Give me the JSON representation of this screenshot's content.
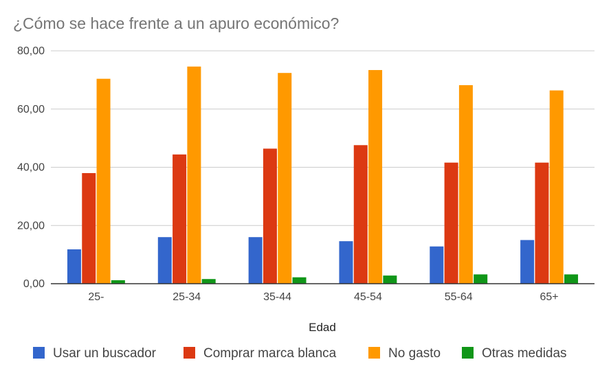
{
  "chart_data": {
    "type": "bar",
    "title": "¿Cómo se hace frente a un apuro económico?",
    "xlabel": "Edad",
    "ylabel": "",
    "ylim": [
      0,
      80
    ],
    "yticks": [
      "0,00",
      "20,00",
      "40,00",
      "60,00",
      "80,00"
    ],
    "grid": true,
    "legend_position": "bottom",
    "categories": [
      "25-",
      "25-34",
      "35-44",
      "45-54",
      "55-64",
      "65+"
    ],
    "series": [
      {
        "name": "Usar un buscador",
        "color": "#3366cc",
        "values": [
          11.8,
          16.0,
          16.0,
          14.6,
          12.8,
          15.0
        ]
      },
      {
        "name": "Comprar marca blanca",
        "color": "#dc3912",
        "values": [
          38.0,
          44.4,
          46.4,
          47.6,
          41.6,
          41.6
        ]
      },
      {
        "name": "No gasto",
        "color": "#ff9900",
        "values": [
          70.4,
          74.6,
          72.4,
          73.4,
          68.2,
          66.4
        ]
      },
      {
        "name": "Otras medidas",
        "color": "#109618",
        "values": [
          1.2,
          1.6,
          2.2,
          2.8,
          3.2,
          3.2
        ]
      }
    ]
  }
}
